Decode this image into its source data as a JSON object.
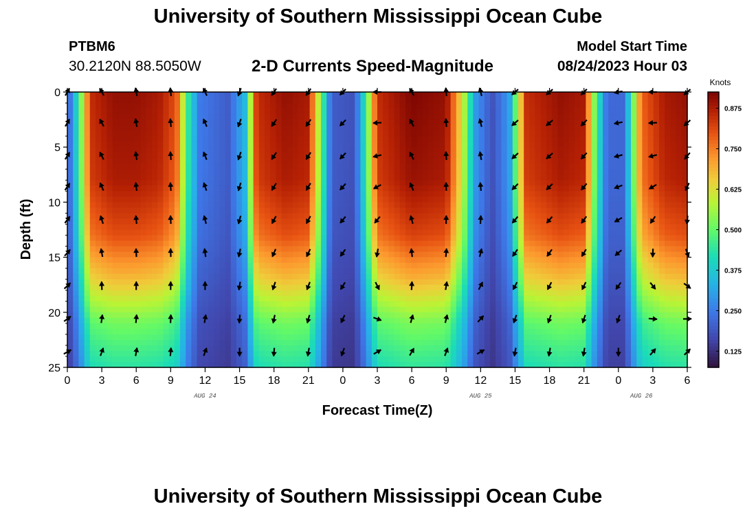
{
  "page": {
    "title_top": "University of Southern Mississippi Ocean Cube",
    "title_bottom": "University of Southern Mississippi Ocean Cube",
    "station_id": "PTBM6",
    "station_coords": "30.2120N  88.5050W",
    "model_start_label": "Model Start Time",
    "model_start_value": "08/24/2023 Hour 03"
  },
  "chart_data": {
    "type": "heatmap",
    "title": "2-D Currents Speed-Magnitude",
    "xlabel": "Forecast Time(Z)",
    "ylabel": "Depth (ft)",
    "x_range_hours": [
      0,
      54
    ],
    "x_tick_labels": [
      "0",
      "3",
      "6",
      "9",
      "12",
      "15",
      "18",
      "21",
      "0",
      "3",
      "6",
      "9",
      "12",
      "15",
      "18",
      "21",
      "0",
      "3",
      "6"
    ],
    "y_range_ft": [
      0,
      25
    ],
    "y_ticks": [
      0,
      5,
      10,
      15,
      20,
      25
    ],
    "y_tick_labels": [
      "0",
      "5",
      "10",
      "15",
      "20",
      "25"
    ],
    "date_labels": [
      {
        "text": "AUG 24",
        "hour": 12
      },
      {
        "text": "AUG 25",
        "hour": 36
      },
      {
        "text": "AUG 26",
        "hour": 50
      }
    ],
    "colorbar": {
      "label": "Knots",
      "min": 0.075,
      "max": 0.925,
      "ticks": [
        0.125,
        0.25,
        0.375,
        0.5,
        0.625,
        0.75,
        0.875
      ],
      "tick_labels": [
        "0.125",
        "0.250",
        "0.375",
        "0.500",
        "0.625",
        "0.750",
        "0.875"
      ]
    },
    "speed_model": {
      "description": "surface speed by forecast hour, attenuation factor by depth",
      "surface_speed_by_hour": [
        [
          0,
          0.18
        ],
        [
          1,
          0.45
        ],
        [
          2,
          0.85
        ],
        [
          4,
          0.9
        ],
        [
          6,
          0.9
        ],
        [
          8,
          0.88
        ],
        [
          9.5,
          0.8
        ],
        [
          10.5,
          0.45
        ],
        [
          11.5,
          0.25
        ],
        [
          14,
          0.2
        ],
        [
          15.5,
          0.35
        ],
        [
          16.5,
          0.85
        ],
        [
          19,
          0.9
        ],
        [
          21,
          0.88
        ],
        [
          22,
          0.55
        ],
        [
          23,
          0.2
        ],
        [
          25,
          0.18
        ],
        [
          26,
          0.45
        ],
        [
          27,
          0.85
        ],
        [
          30,
          0.92
        ],
        [
          33,
          0.9
        ],
        [
          34.5,
          0.6
        ],
        [
          35.5,
          0.3
        ],
        [
          37,
          0.18
        ],
        [
          38.5,
          0.3
        ],
        [
          40,
          0.85
        ],
        [
          43,
          0.9
        ],
        [
          45,
          0.88
        ],
        [
          46,
          0.5
        ],
        [
          47,
          0.22
        ],
        [
          48.5,
          0.22
        ],
        [
          50,
          0.78
        ],
        [
          52,
          0.88
        ],
        [
          54,
          0.9
        ]
      ],
      "depth_factor": [
        [
          0,
          1.0
        ],
        [
          8,
          0.97
        ],
        [
          13,
          0.88
        ],
        [
          17,
          0.72
        ],
        [
          21,
          0.52
        ],
        [
          25,
          0.42
        ]
      ],
      "floor_knots": 0.1
    },
    "vectors": {
      "hours": [
        0,
        3,
        6,
        9,
        12,
        15,
        18,
        21,
        24,
        27,
        30,
        33,
        36,
        39,
        42,
        45,
        48,
        51,
        54
      ],
      "depths_ft": [
        0,
        2.8,
        5.8,
        8.6,
        11.6,
        14.6,
        17.6,
        20.6,
        23.6
      ],
      "direction_deg_by_hour": [
        30,
        -30,
        -10,
        -5,
        -25,
        200,
        215,
        215,
        225,
        270,
        -30,
        -5,
        -15,
        230,
        230,
        225,
        260,
        270,
        230
      ],
      "direction_deg_deep_by_hour": [
        60,
        20,
        10,
        5,
        20,
        180,
        185,
        190,
        200,
        60,
        30,
        20,
        60,
        190,
        190,
        190,
        180,
        40,
        45
      ]
    }
  }
}
